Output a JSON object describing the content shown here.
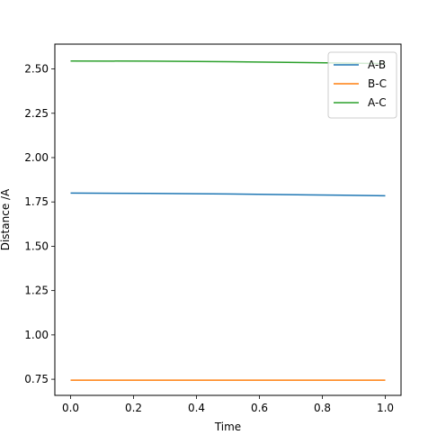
{
  "chart_data": {
    "type": "line",
    "title": "",
    "xlabel": "Time",
    "ylabel": "Distance /A",
    "xlim": [
      -0.05,
      1.05
    ],
    "ylim": [
      0.659,
      2.64
    ],
    "xticks": [
      "0.0",
      "0.2",
      "0.4",
      "0.6",
      "0.8",
      "1.0"
    ],
    "yticks": [
      "0.75",
      "1.00",
      "1.25",
      "1.50",
      "1.75",
      "2.00",
      "2.25",
      "2.50"
    ],
    "grid": false,
    "legend_position": "top-right",
    "series": [
      {
        "name": "A-B",
        "color": "#1f77b4",
        "x": [
          0.0,
          0.25,
          0.5,
          0.75,
          1.0
        ],
        "y": [
          1.8,
          1.798,
          1.795,
          1.79,
          1.785
        ]
      },
      {
        "name": "B-C",
        "color": "#ff7f0e",
        "x": [
          0.0,
          0.25,
          0.5,
          0.75,
          1.0
        ],
        "y": [
          0.745,
          0.745,
          0.745,
          0.745,
          0.745
        ]
      },
      {
        "name": "A-C",
        "color": "#2ca02c",
        "x": [
          0.0,
          0.25,
          0.5,
          0.75,
          1.0
        ],
        "y": [
          2.545,
          2.544,
          2.541,
          2.536,
          2.53
        ]
      }
    ]
  }
}
